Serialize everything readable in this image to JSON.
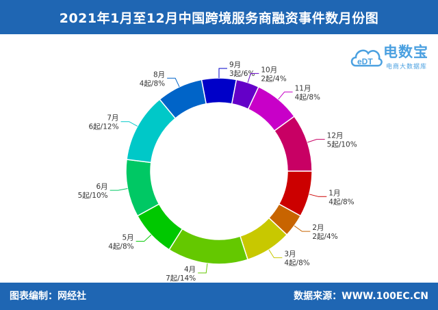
{
  "header": {
    "title": "2021年1月至12月中国跨境服务商融资事件数月份图"
  },
  "footer": {
    "left": "图表编制：网经社",
    "right": "数据来源：WWW.100EC.CN"
  },
  "logo": {
    "main": "电数宝",
    "sub": "电商大数据库",
    "mark": "eDT"
  },
  "chart_data": {
    "type": "pie",
    "donut": true,
    "categories": [
      "1月",
      "2月",
      "3月",
      "4月",
      "5月",
      "6月",
      "7月",
      "8月",
      "9月",
      "10月",
      "11月",
      "12月"
    ],
    "values": [
      4,
      2,
      4,
      7,
      4,
      5,
      6,
      4,
      3,
      2,
      4,
      5
    ],
    "value_labels": [
      "4起/8%",
      "2起/4%",
      "4起/8%",
      "7起/14%",
      "4起/8%",
      "5起/10%",
      "6起/12%",
      "4起/8%",
      "3起/6%",
      "2起/4%",
      "4起/8%",
      "5起/10%"
    ],
    "colors": [
      "#cc0000",
      "#c86400",
      "#c8c800",
      "#64c800",
      "#00c800",
      "#00c864",
      "#00c8c8",
      "#0064c8",
      "#0000c8",
      "#6400c8",
      "#c800c8",
      "#c80064"
    ]
  }
}
